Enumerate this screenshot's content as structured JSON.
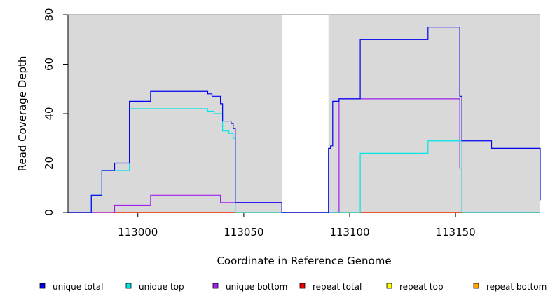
{
  "chart_data": {
    "type": "line",
    "title": "",
    "xlabel": "Coordinate in Reference Genome",
    "ylabel": "Read Coverage Depth",
    "xlim": [
      112967,
      113190
    ],
    "ylim": [
      0,
      80
    ],
    "x_ticks": [
      {
        "value": 113000,
        "label": "113000"
      },
      {
        "value": 113050,
        "label": "113050"
      },
      {
        "value": 113100,
        "label": "113100"
      },
      {
        "value": 113150,
        "label": "113150"
      }
    ],
    "y_ticks": [
      {
        "value": 0,
        "label": "0"
      },
      {
        "value": 20,
        "label": "20"
      },
      {
        "value": 40,
        "label": "40"
      },
      {
        "value": 60,
        "label": "60"
      },
      {
        "value": 80,
        "label": "80"
      }
    ],
    "shaded_regions": [
      {
        "x0": 112967,
        "x1": 113068,
        "color": "#d9d9d9"
      },
      {
        "x0": 113090,
        "x1": 113190,
        "color": "#d9d9d9"
      }
    ],
    "legend_position": "bottom",
    "series": [
      {
        "name": "unique total",
        "color": "#0000ee",
        "x": [
          112967,
          112978,
          112983,
          112989,
          112996,
          113006,
          113033,
          113034,
          113035,
          113039,
          113040,
          113041,
          113044,
          113045,
          113046,
          113068,
          113090,
          113091,
          113092,
          113095,
          113105,
          113137,
          113152,
          113153,
          113166,
          113167,
          113190
        ],
        "y": [
          0,
          7,
          17,
          20,
          45,
          49,
          48,
          48,
          47,
          44,
          37,
          37,
          36,
          34,
          4,
          0,
          26,
          27,
          45,
          46,
          70,
          75,
          47,
          29,
          29,
          26,
          5
        ]
      },
      {
        "name": "unique top",
        "color": "#00e5e5",
        "x": [
          112967,
          112978,
          112983,
          112989,
          112996,
          113033,
          113034,
          113036,
          113039,
          113040,
          113043,
          113045,
          113046,
          113068,
          113090,
          113105,
          113137,
          113153,
          113190
        ],
        "y": [
          0,
          7,
          17,
          17,
          42,
          41,
          41,
          40,
          40,
          33,
          32,
          30,
          0,
          0,
          0,
          24,
          29,
          0,
          0
        ]
      },
      {
        "name": "unique bottom",
        "color": "#a020f0",
        "x": [
          112967,
          112989,
          113006,
          113039,
          113040,
          113046,
          113068,
          113090,
          113095,
          113152,
          113153,
          113190
        ],
        "y": [
          0,
          3,
          7,
          4,
          4,
          4,
          0,
          0,
          46,
          18,
          0,
          0
        ]
      },
      {
        "name": "repeat total",
        "color": "#ee0000",
        "x": [
          112967,
          113190
        ],
        "y": [
          0,
          0
        ]
      },
      {
        "name": "repeat top",
        "color": "#ffff00",
        "x": [
          112967,
          113190
        ],
        "y": [
          0,
          0
        ]
      },
      {
        "name": "repeat bottom",
        "color": "#ffa500",
        "x": [
          112967,
          113190
        ],
        "y": [
          0,
          0
        ]
      }
    ]
  }
}
